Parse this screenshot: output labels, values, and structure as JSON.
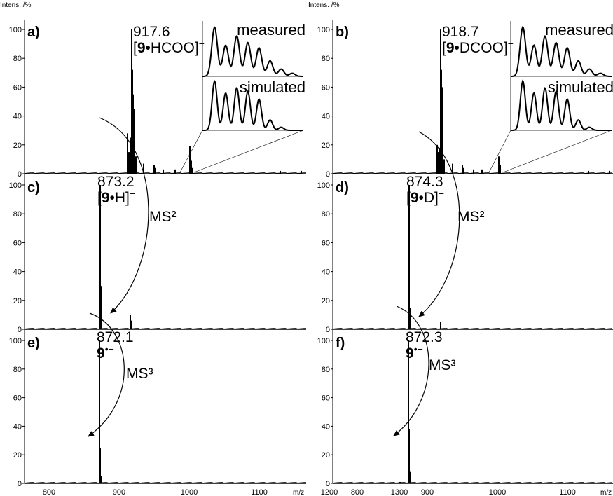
{
  "x_unit": "m/z",
  "y_axis_label": "Intens. /%",
  "y_ticks": [
    0,
    20,
    40,
    60,
    80,
    100
  ],
  "x_ticks": [
    800,
    900,
    1000,
    1100,
    1200,
    1300
  ],
  "inset_labels": {
    "measured": "measured",
    "simulated": "simulated"
  },
  "arrows": {
    "ms2": "MS²",
    "ms3": "MS³"
  },
  "chart_data": [
    {
      "panel": "a)",
      "type": "bar",
      "annotation_mass": "917.6",
      "ion": {
        "lb": "[",
        "bold": "9",
        "rest": "•HCOO]",
        "sup": "−"
      },
      "xlim": [
        745,
        1345
      ],
      "ylim": [
        0,
        100
      ],
      "peaks": [
        [
          912,
          28
        ],
        [
          914,
          15
        ],
        [
          916,
          25
        ],
        [
          918,
          100
        ],
        [
          919,
          72
        ],
        [
          920,
          55
        ],
        [
          921,
          45
        ],
        [
          922,
          30
        ],
        [
          924,
          12
        ],
        [
          935,
          7
        ],
        [
          950,
          6
        ],
        [
          952,
          4
        ],
        [
          963,
          3
        ],
        [
          980,
          3
        ],
        [
          1001,
          19
        ],
        [
          1003,
          9
        ],
        [
          1005,
          4
        ],
        [
          1130,
          2
        ],
        [
          1160,
          2
        ]
      ]
    },
    {
      "panel": "b)",
      "type": "bar",
      "annotation_mass": "918.7",
      "ion": {
        "lb": "[",
        "bold": "9",
        "rest": "•DCOO]",
        "sup": "−"
      },
      "xlim": [
        745,
        1345
      ],
      "ylim": [
        0,
        100
      ],
      "peaks": [
        [
          914,
          20
        ],
        [
          916,
          15
        ],
        [
          918,
          18
        ],
        [
          919,
          100
        ],
        [
          920,
          72
        ],
        [
          921,
          60
        ],
        [
          922,
          30
        ],
        [
          924,
          10
        ],
        [
          936,
          7
        ],
        [
          950,
          6
        ],
        [
          952,
          4
        ],
        [
          966,
          3
        ],
        [
          978,
          3
        ],
        [
          1002,
          12
        ],
        [
          1004,
          6
        ],
        [
          1130,
          2
        ],
        [
          1160,
          2
        ]
      ]
    },
    {
      "panel": "c)",
      "type": "bar",
      "annotation_mass": "873.2",
      "ion": {
        "lb": "[",
        "bold": "9",
        "rest": "•H]",
        "sup": "−"
      },
      "xlim": [
        745,
        1345
      ],
      "ylim": [
        0,
        100
      ],
      "peaks": [
        [
          873,
          100
        ],
        [
          874,
          30
        ],
        [
          875,
          6
        ],
        [
          916,
          10
        ],
        [
          918,
          6
        ]
      ]
    },
    {
      "panel": "d)",
      "type": "bar",
      "annotation_mass": "874.3",
      "ion": {
        "lb": "[",
        "bold": "9",
        "rest": "•D]",
        "sup": "−"
      },
      "xlim": [
        745,
        1345
      ],
      "ylim": [
        0,
        100
      ],
      "peaks": [
        [
          874,
          100
        ],
        [
          875,
          15
        ],
        [
          919,
          5
        ]
      ]
    },
    {
      "panel": "e)",
      "type": "bar",
      "annotation_mass": "872.1",
      "ion": {
        "lb": "",
        "bold": "9",
        "rest": "",
        "sup": "•−"
      },
      "xlim": [
        745,
        1345
      ],
      "ylim": [
        0,
        100
      ],
      "peaks": [
        [
          872,
          100
        ],
        [
          873,
          25
        ],
        [
          874,
          5
        ]
      ]
    },
    {
      "panel": "f)",
      "type": "bar",
      "annotation_mass": "872.3",
      "ion": {
        "lb": "",
        "bold": "9",
        "rest": "",
        "sup": "•−"
      },
      "xlim": [
        745,
        1345
      ],
      "ylim": [
        0,
        100
      ],
      "peaks": [
        [
          873,
          100
        ],
        [
          874,
          38
        ],
        [
          875,
          8
        ],
        [
          861,
          1
        ]
      ]
    }
  ]
}
